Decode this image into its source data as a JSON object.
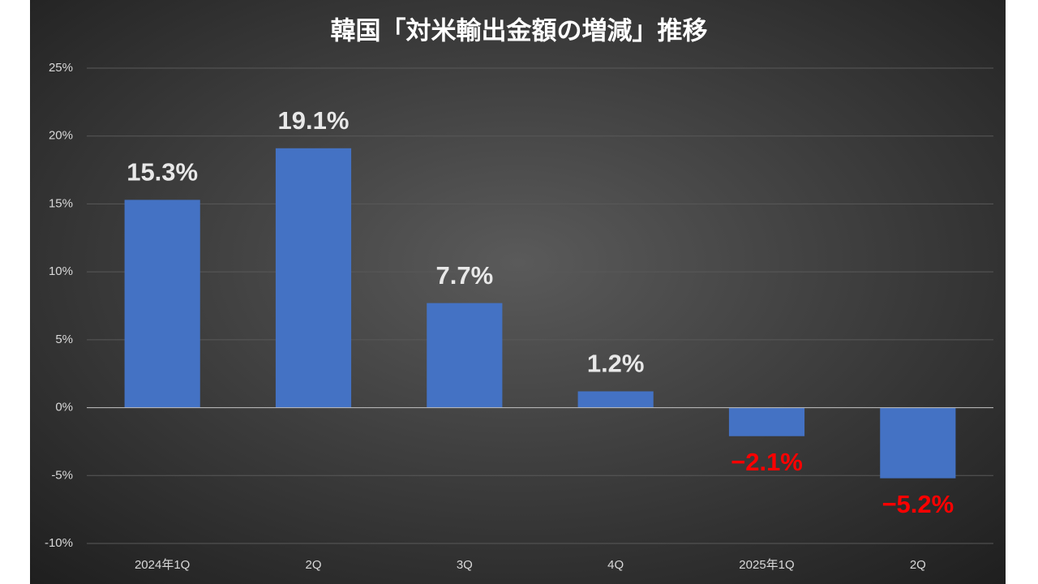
{
  "chart_data": {
    "type": "bar",
    "title": "韓国「対米輸出金額の増減」推移",
    "categories": [
      "2024年1Q",
      "2Q",
      "3Q",
      "4Q",
      "2025年1Q",
      "2Q"
    ],
    "values": [
      15.3,
      19.1,
      7.7,
      1.2,
      -2.1,
      -5.2
    ],
    "value_labels": [
      "15.3%",
      "19.1%",
      "7.7%",
      "1.2%",
      "−2.1%",
      "−5.2%"
    ],
    "color": "#4472c4",
    "value_label_color": "#e8e8e8",
    "negative_value_label_color": "#ff0000",
    "ylim": [
      -10,
      25
    ],
    "yticks": [
      {
        "value": -10,
        "label": "-10%"
      },
      {
        "value": -5,
        "label": "-5%"
      },
      {
        "value": 0,
        "label": "0%"
      },
      {
        "value": 5,
        "label": "5%"
      },
      {
        "value": 10,
        "label": "10%"
      },
      {
        "value": 15,
        "label": "15%"
      },
      {
        "value": 20,
        "label": "20%"
      },
      {
        "value": 25,
        "label": "25%"
      }
    ],
    "grid": true
  }
}
